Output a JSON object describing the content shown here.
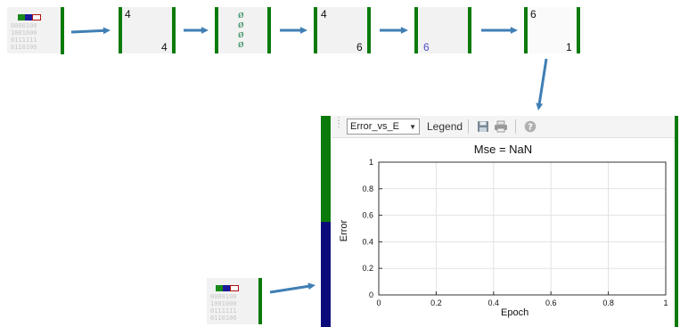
{
  "pipeline": {
    "input_bits": "0000100\n1001000\n0111111\n0110100",
    "input2_bits": "0000100\n1001000\n0111111\n0110100",
    "layer1": {
      "in": "4",
      "out": "4"
    },
    "layer3": {
      "in": "4",
      "out": "6"
    },
    "layer4": {
      "out": "6"
    },
    "layer5": {
      "in": "6",
      "out": "1"
    },
    "phi_symbols": [
      "ø",
      "ø",
      "ø",
      "ø"
    ]
  },
  "toolbar": {
    "select_value": "Error_vs_E",
    "legend_label": "Legend",
    "icons": [
      "save-icon",
      "print-icon",
      "help-icon"
    ]
  },
  "chart_data": {
    "type": "line",
    "title": "Mse = NaN",
    "xlabel": "Epoch",
    "ylabel": "Error",
    "xlim": [
      0,
      1
    ],
    "ylim": [
      0,
      1
    ],
    "x_ticks": [
      "0",
      "0.2",
      "0.4",
      "0.6",
      "0.8",
      "1"
    ],
    "y_ticks": [
      "0",
      "0.2",
      "0.4",
      "0.6",
      "0.8",
      "1"
    ],
    "grid": true,
    "series": []
  },
  "colors": {
    "green": "#0b7a0b",
    "navy": "#0a0a7a",
    "teal": "#3cc4b4",
    "arrow": "#3f7fb5"
  }
}
